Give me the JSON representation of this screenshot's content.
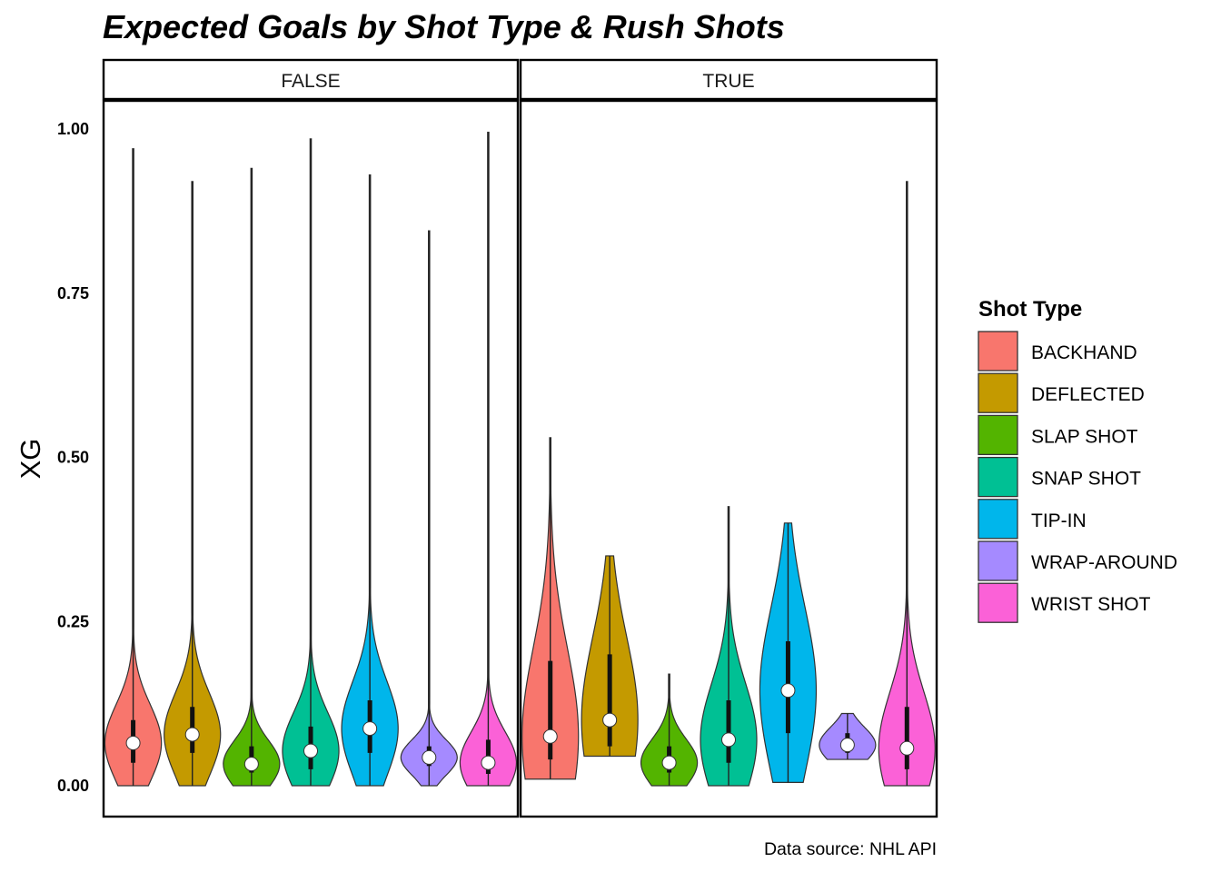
{
  "chart_data": {
    "type": "violin",
    "title": "Expected Goals by Shot Type & Rush Shots",
    "ylabel": "XG",
    "xlabel": "",
    "ylim": [
      0,
      1.05
    ],
    "yticks": [
      "0.00",
      "0.25",
      "0.50",
      "0.75",
      "1.00"
    ],
    "yticks_values": [
      0,
      0.25,
      0.5,
      0.75,
      1.0
    ],
    "grid": false,
    "legend_position": "right",
    "legend_title": "Shot Type",
    "caption": "Data source: NHL API",
    "categories": [
      "BACKHAND",
      "DEFLECTED",
      "SLAP SHOT",
      "SNAP SHOT",
      "TIP-IN",
      "WRAP-AROUND",
      "WRIST SHOT"
    ],
    "colors": [
      "#F8766D",
      "#C49A00",
      "#53B400",
      "#00C094",
      "#00B6EB",
      "#A58AFF",
      "#FB61D7"
    ],
    "facets": [
      {
        "label": "FALSE",
        "series": [
          {
            "name": "BACKHAND",
            "min": 0.0,
            "max": 0.97,
            "median": 0.065,
            "q1": 0.035,
            "q3": 0.1
          },
          {
            "name": "DEFLECTED",
            "min": 0.0,
            "max": 0.92,
            "median": 0.078,
            "q1": 0.05,
            "q3": 0.12
          },
          {
            "name": "SLAP SHOT",
            "min": 0.0,
            "max": 0.94,
            "median": 0.033,
            "q1": 0.02,
            "q3": 0.06
          },
          {
            "name": "SNAP SHOT",
            "min": 0.0,
            "max": 0.985,
            "median": 0.053,
            "q1": 0.025,
            "q3": 0.09
          },
          {
            "name": "TIP-IN",
            "min": 0.0,
            "max": 0.93,
            "median": 0.087,
            "q1": 0.05,
            "q3": 0.13
          },
          {
            "name": "WRAP-AROUND",
            "min": 0.0,
            "max": 0.845,
            "median": 0.043,
            "q1": 0.03,
            "q3": 0.06
          },
          {
            "name": "WRIST SHOT",
            "min": 0.0,
            "max": 0.995,
            "median": 0.035,
            "q1": 0.018,
            "q3": 0.07
          }
        ]
      },
      {
        "label": "TRUE",
        "series": [
          {
            "name": "BACKHAND",
            "min": 0.01,
            "max": 0.53,
            "median": 0.075,
            "q1": 0.04,
            "q3": 0.19
          },
          {
            "name": "DEFLECTED",
            "min": 0.045,
            "max": 0.35,
            "median": 0.1,
            "q1": 0.06,
            "q3": 0.2
          },
          {
            "name": "SLAP SHOT",
            "min": 0.0,
            "max": 0.17,
            "median": 0.035,
            "q1": 0.02,
            "q3": 0.06
          },
          {
            "name": "SNAP SHOT",
            "min": 0.0,
            "max": 0.425,
            "median": 0.07,
            "q1": 0.035,
            "q3": 0.13
          },
          {
            "name": "TIP-IN",
            "min": 0.005,
            "max": 0.4,
            "median": 0.145,
            "q1": 0.08,
            "q3": 0.22
          },
          {
            "name": "WRAP-AROUND",
            "min": 0.04,
            "max": 0.11,
            "median": 0.062,
            "q1": 0.05,
            "q3": 0.08
          },
          {
            "name": "WRIST SHOT",
            "min": 0.0,
            "max": 0.92,
            "median": 0.057,
            "q1": 0.025,
            "q3": 0.12
          }
        ]
      }
    ]
  }
}
